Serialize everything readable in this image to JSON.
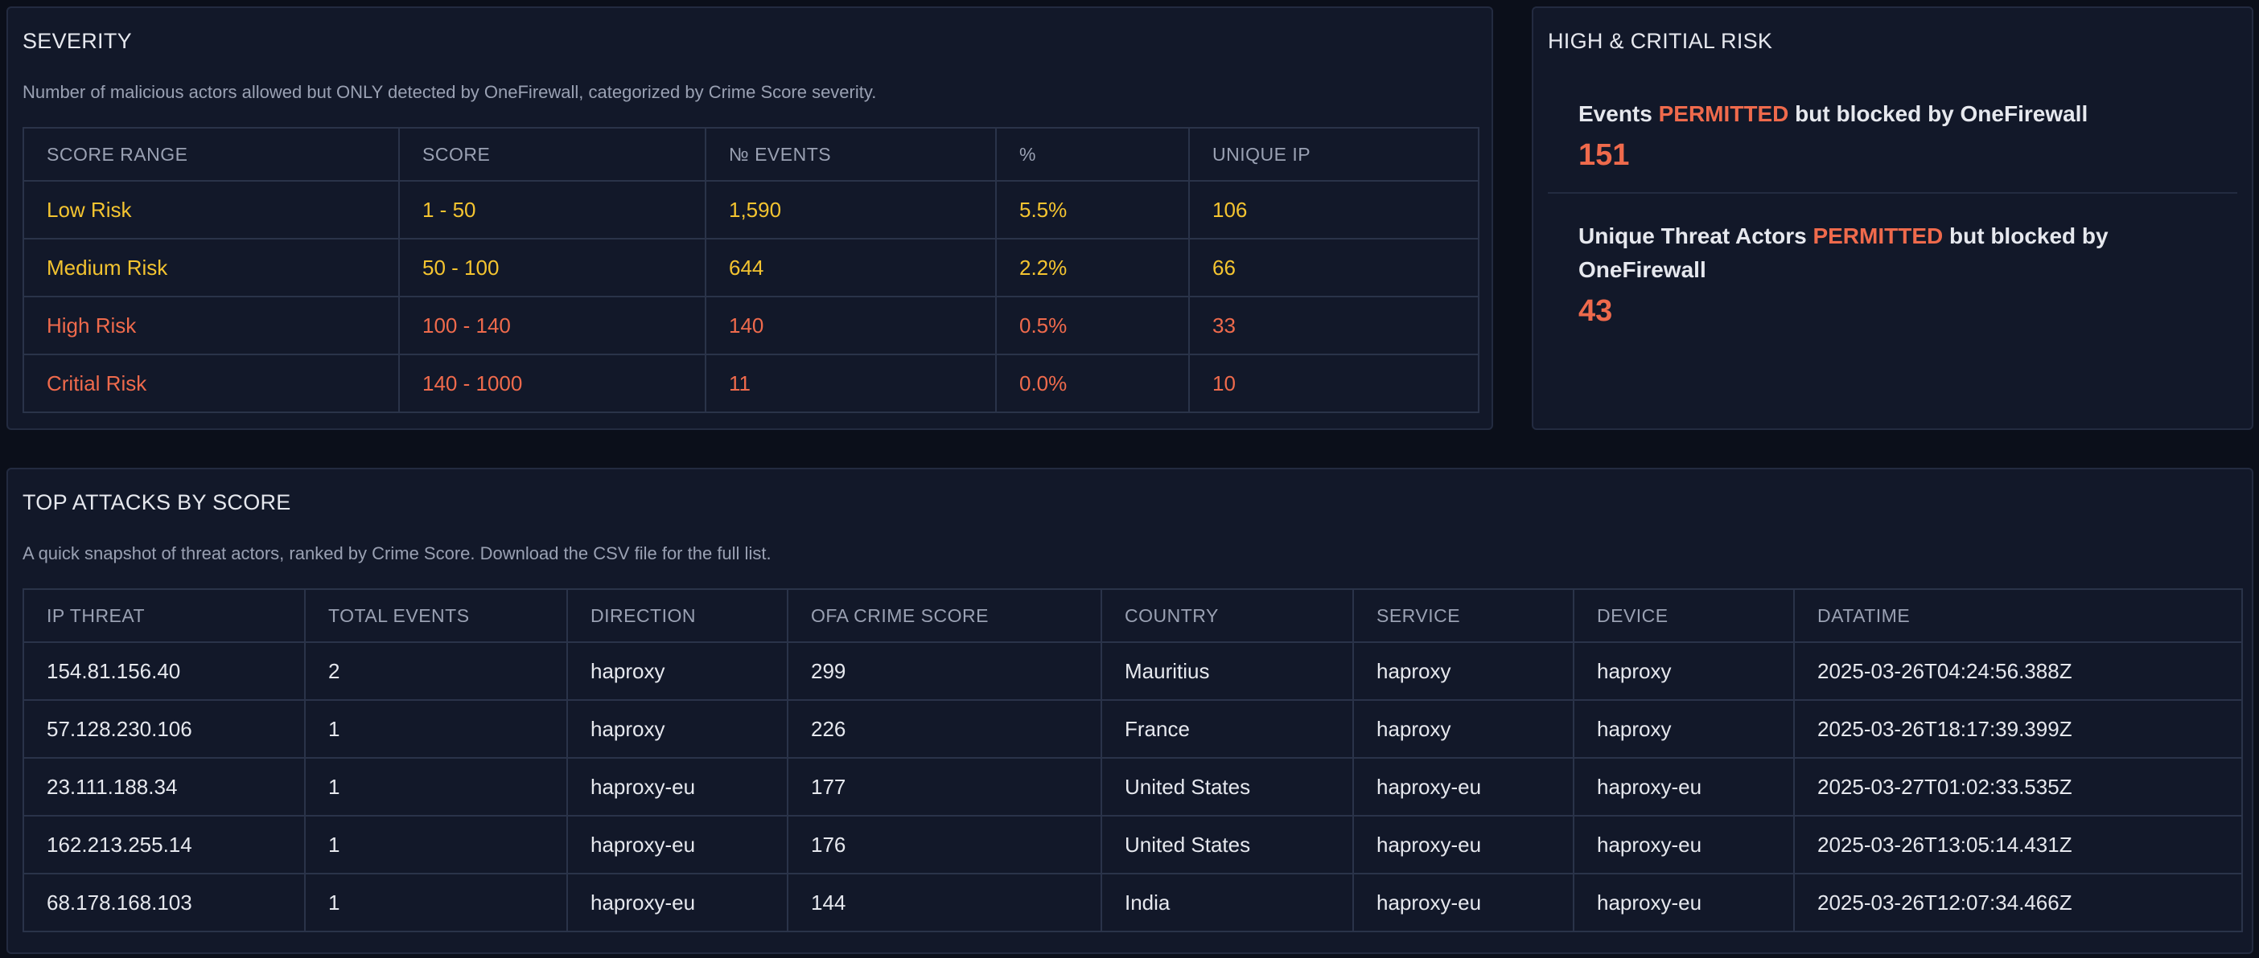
{
  "severity": {
    "title": "SEVERITY",
    "subtitle": "Number of malicious actors allowed but ONLY detected by OneFirewall, categorized by Crime Score severity.",
    "columns": [
      "SCORE RANGE",
      "SCORE",
      "№ EVENTS",
      "%",
      "UNIQUE IP"
    ],
    "rows": [
      {
        "range": "Low Risk",
        "score": "1 - 50",
        "events": "1,590",
        "percent": "5.5%",
        "unique_ip": "106"
      },
      {
        "range": "Medium Risk",
        "score": "50 - 100",
        "events": "644",
        "percent": "2.2%",
        "unique_ip": "66"
      },
      {
        "range": "High Risk",
        "score": "100 - 140",
        "events": "140",
        "percent": "0.5%",
        "unique_ip": "33"
      },
      {
        "range": "Critial Risk",
        "score": "140 - 1000",
        "events": "11",
        "percent": "0.0%",
        "unique_ip": "10"
      }
    ],
    "colors": {
      "yellow": "#f4c430",
      "red": "#ef6a4c"
    }
  },
  "risk": {
    "title": "HIGH & CRITIAL RISK",
    "events": {
      "prefix": "Events",
      "highlight": "PERMITTED",
      "suffix": "but blocked by OneFirewall",
      "value": "151"
    },
    "unique": {
      "prefix": "Unique Threat Actors",
      "highlight": "PERMITTED",
      "suffix": "but blocked by OneFirewall",
      "value": "43"
    }
  },
  "attacks": {
    "title": "TOP ATTACKS BY SCORE",
    "subtitle": "A quick snapshot of threat actors, ranked by Crime Score. Download the CSV file for the full list.",
    "columns": [
      "IP THREAT",
      "TOTAL EVENTS",
      "DIRECTION",
      "OFA CRIME SCORE",
      "COUNTRY",
      "SERVICE",
      "DEVICE",
      "DATATIME"
    ],
    "rows": [
      {
        "ip": "154.81.156.40",
        "total": "2",
        "direction": "haproxy",
        "score": "299",
        "country": "Mauritius",
        "service": "haproxy",
        "device": "haproxy",
        "datetime": "2025-03-26T04:24:56.388Z"
      },
      {
        "ip": "57.128.230.106",
        "total": "1",
        "direction": "haproxy",
        "score": "226",
        "country": "France",
        "service": "haproxy",
        "device": "haproxy",
        "datetime": "2025-03-26T18:17:39.399Z"
      },
      {
        "ip": "23.111.188.34",
        "total": "1",
        "direction": "haproxy-eu",
        "score": "177",
        "country": "United States",
        "service": "haproxy-eu",
        "device": "haproxy-eu",
        "datetime": "2025-03-27T01:02:33.535Z"
      },
      {
        "ip": "162.213.255.14",
        "total": "1",
        "direction": "haproxy-eu",
        "score": "176",
        "country": "United States",
        "service": "haproxy-eu",
        "device": "haproxy-eu",
        "datetime": "2025-03-26T13:05:14.431Z"
      },
      {
        "ip": "68.178.168.103",
        "total": "1",
        "direction": "haproxy-eu",
        "score": "144",
        "country": "India",
        "service": "haproxy-eu",
        "device": "haproxy-eu",
        "datetime": "2025-03-26T12:07:34.466Z"
      }
    ]
  }
}
